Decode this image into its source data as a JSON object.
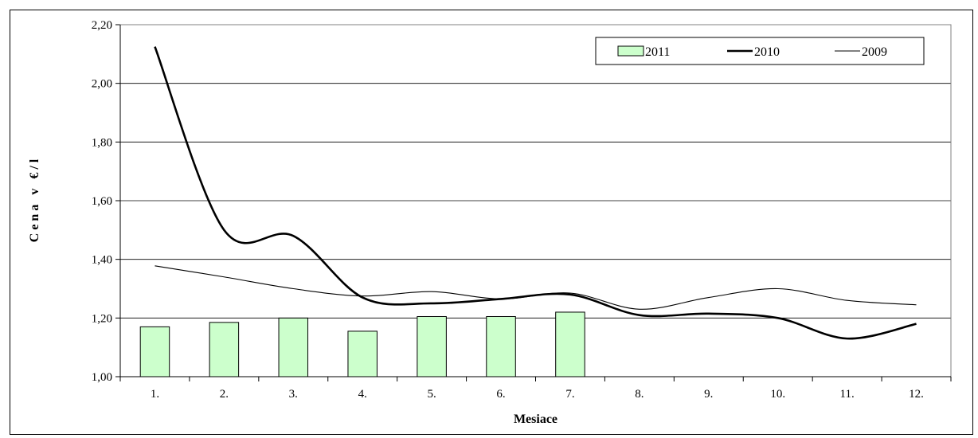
{
  "chart_data": {
    "type": "bar",
    "title": "",
    "xlabel": "Mesiace",
    "ylabel": "C e n a   v   € / l",
    "categories": [
      "1.",
      "2.",
      "3.",
      "4.",
      "5.",
      "6.",
      "7.",
      "8.",
      "9.",
      "10.",
      "11.",
      "12."
    ],
    "ylim": [
      1.0,
      2.2
    ],
    "y_ticks": [
      "1,00",
      "1,20",
      "1,40",
      "1,60",
      "1,80",
      "2,00",
      "2,20"
    ],
    "grid": true,
    "legend_position": "top-right",
    "series": [
      {
        "name": "2011",
        "kind": "bar",
        "color": "#ccffcc",
        "values": [
          1.17,
          1.185,
          1.2,
          1.155,
          1.205,
          1.205,
          1.22,
          null,
          null,
          null,
          null,
          null
        ]
      },
      {
        "name": "2010",
        "kind": "line",
        "color": "#000000",
        "values": [
          2.125,
          1.5,
          1.48,
          1.27,
          1.25,
          1.265,
          1.28,
          1.21,
          1.215,
          1.2,
          1.13,
          1.18
        ]
      },
      {
        "name": "2009",
        "kind": "line",
        "color": "#000000",
        "values": [
          1.378,
          1.34,
          1.3,
          1.275,
          1.29,
          1.265,
          1.285,
          1.23,
          1.27,
          1.3,
          1.26,
          1.245
        ]
      }
    ]
  }
}
